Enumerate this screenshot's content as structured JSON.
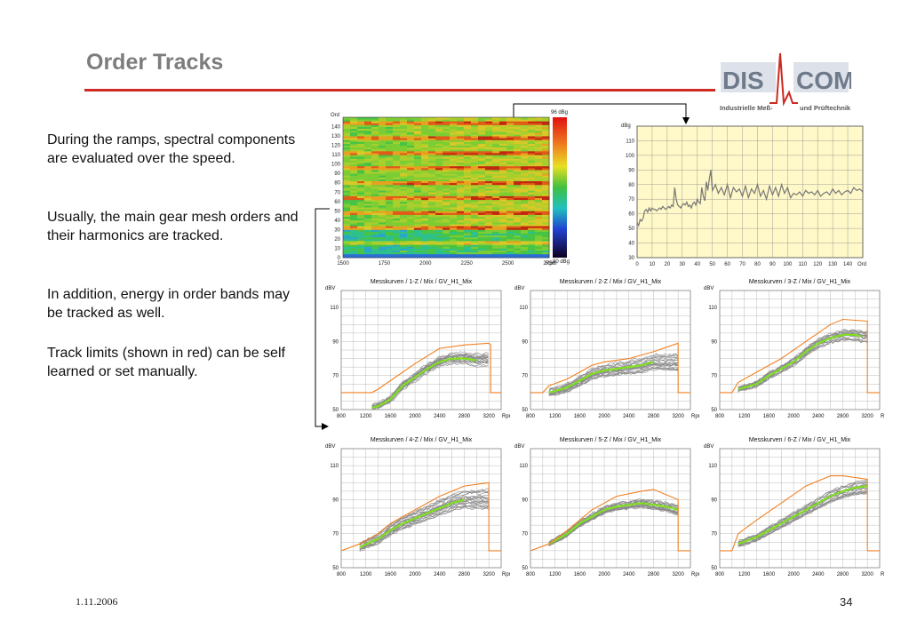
{
  "slide": {
    "title": "Order Tracks",
    "date": "1.11.2006",
    "page_number": "34"
  },
  "logo": {
    "part1": "DIS",
    "part2": "COM",
    "subtitle_left": "Industrielle Meß-",
    "subtitle_right": "und Prüftechnik",
    "colors": {
      "text": "#6f7a8a",
      "pulse": "#cc2a22"
    }
  },
  "paragraphs": [
    "During the ramps, spectral components are evaluated over the speed.",
    "Usually, the main gear mesh orders and their harmonics are tracked.",
    "In addition, energy in order bands may be tracked as well.",
    "Track limits (shown in red) can be self learned or set manually."
  ],
  "colors": {
    "accent_red": "#cc2a22",
    "track_limit": "#f08020",
    "track_curve": "#80e020",
    "measurement": "#808080",
    "spectrum_bg": "#fff8c8"
  },
  "chart_data": [
    {
      "type": "heatmap",
      "id": "colormap",
      "title": "",
      "ylabel": "Ord",
      "xlabel": "Rpm",
      "x_ticks": [
        "1500",
        "1750",
        "2000",
        "2250",
        "2500",
        "2750"
      ],
      "y_ticks": [
        "0",
        "10",
        "20",
        "30",
        "40",
        "50",
        "60",
        "70",
        "80",
        "90",
        "100",
        "110",
        "120",
        "130",
        "140"
      ],
      "xlim": [
        1500,
        2750
      ],
      "ylim": [
        0,
        150
      ],
      "scale_top": "96 dBg",
      "scale_bottom": "30 dBg",
      "strong_orders": [
        16,
        32,
        48,
        64,
        80,
        96,
        112,
        128,
        144
      ]
    },
    {
      "type": "line",
      "id": "order-spectrum",
      "title": "",
      "ylabel": "dBg",
      "xlabel": "Ord",
      "x_ticks": [
        "0",
        "10",
        "20",
        "30",
        "40",
        "50",
        "60",
        "70",
        "80",
        "90",
        "100",
        "110",
        "120",
        "130",
        "140"
      ],
      "y_ticks": [
        "30",
        "40",
        "50",
        "60",
        "70",
        "80",
        "90",
        "100",
        "110"
      ],
      "xlim": [
        0,
        150
      ],
      "ylim": [
        30,
        120
      ],
      "grid": true,
      "series": [
        {
          "x": [
            0,
            1,
            2,
            3,
            4,
            5,
            6,
            7,
            8,
            9,
            10,
            11,
            12,
            13,
            14,
            15,
            16,
            17,
            18,
            19,
            20,
            21,
            22,
            23,
            24,
            25,
            26,
            27,
            28,
            29,
            30,
            31,
            32,
            33,
            34,
            35,
            36,
            37,
            38,
            39,
            40,
            41,
            42,
            43,
            44,
            45,
            46,
            47,
            48,
            49,
            50,
            52,
            54,
            56,
            58,
            60,
            62,
            64,
            66,
            68,
            70,
            72,
            74,
            76,
            78,
            80,
            82,
            84,
            86,
            88,
            90,
            92,
            94,
            96,
            98,
            100,
            102,
            104,
            106,
            108,
            110,
            112,
            114,
            116,
            118,
            120,
            122,
            124,
            126,
            128,
            130,
            132,
            134,
            136,
            138,
            140,
            142,
            144,
            146,
            148,
            150
          ],
          "y": [
            54,
            52,
            56,
            55,
            57,
            62,
            63,
            61,
            64,
            62,
            64,
            63,
            63,
            62,
            63,
            64,
            63,
            65,
            64,
            63,
            64,
            65,
            64,
            66,
            65,
            78,
            70,
            66,
            65,
            64,
            66,
            67,
            66,
            68,
            65,
            66,
            64,
            67,
            68,
            66,
            70,
            68,
            67,
            78,
            72,
            69,
            82,
            76,
            84,
            90,
            76,
            80,
            74,
            78,
            73,
            80,
            71,
            78,
            75,
            77,
            72,
            79,
            71,
            77,
            74,
            80,
            72,
            76,
            70,
            79,
            73,
            78,
            72,
            80,
            74,
            78,
            71,
            74,
            73,
            75,
            72,
            76,
            74,
            75,
            73,
            76,
            72,
            74,
            75,
            73,
            77,
            74,
            76,
            73,
            75,
            76,
            74,
            78,
            76,
            77,
            75
          ]
        }
      ]
    },
    {
      "type": "line",
      "id": "mk1",
      "title": "Messkurven / 1-Z / Mix / GV_H1_Mix",
      "ylabel": "dBV",
      "xlabel": "Rpm",
      "x_ticks": [
        "800",
        "1200",
        "1600",
        "2000",
        "2400",
        "2800",
        "3200"
      ],
      "y_ticks": [
        "50",
        "70",
        "90",
        "110"
      ],
      "xlim": [
        800,
        3400
      ],
      "ylim": [
        50,
        120
      ],
      "grid": true,
      "limit": {
        "x": [
          800,
          1300,
          1400,
          1600,
          2000,
          2400,
          2800,
          3200,
          3230,
          3230,
          3400
        ],
        "y": [
          60,
          60,
          62,
          67,
          77,
          86,
          88,
          89,
          88,
          60,
          60
        ]
      },
      "curve": {
        "x": [
          1300,
          1400,
          1500,
          1600,
          1700,
          1800,
          2000,
          2200,
          2400,
          2600,
          2800,
          3000
        ],
        "y": [
          51,
          52,
          54,
          56,
          60,
          64,
          69,
          74,
          78,
          80,
          80,
          79
        ]
      },
      "meas_start": 1300,
      "meas_end": 3200,
      "spread": 4
    },
    {
      "type": "line",
      "id": "mk2",
      "title": "Messkurven / 2-Z / Mix / GV_H1_Mix",
      "ylabel": "dBV",
      "xlabel": "Rpm",
      "x_ticks": [
        "800",
        "1200",
        "1600",
        "2000",
        "2400",
        "2800",
        "3200"
      ],
      "y_ticks": [
        "50",
        "70",
        "90",
        "110"
      ],
      "xlim": [
        800,
        3400
      ],
      "ylim": [
        50,
        120
      ],
      "grid": true,
      "limit": {
        "x": [
          800,
          1000,
          1100,
          1400,
          1600,
          1800,
          2000,
          2400,
          2800,
          3200,
          3200,
          3400
        ],
        "y": [
          60,
          60,
          64,
          68,
          72,
          76,
          78,
          80,
          84,
          89,
          60,
          60
        ]
      },
      "curve": {
        "x": [
          1100,
          1400,
          1600,
          1800,
          2000,
          2200,
          2400,
          2600,
          2800
        ],
        "y": [
          60,
          63,
          67,
          71,
          73,
          74,
          75,
          76,
          78
        ]
      },
      "meas_start": 1100,
      "meas_end": 3200,
      "spread": 5
    },
    {
      "type": "line",
      "id": "mk3",
      "title": "Messkurven / 3-Z / Mix / GV_H1_Mix",
      "ylabel": "dBV",
      "xlabel": "R",
      "x_ticks": [
        "800",
        "1200",
        "1600",
        "2000",
        "2400",
        "2800",
        "3200"
      ],
      "y_ticks": [
        "50",
        "70",
        "90",
        "110"
      ],
      "xlim": [
        800,
        3400
      ],
      "ylim": [
        50,
        120
      ],
      "grid": true,
      "limit": {
        "x": [
          800,
          1000,
          1100,
          1400,
          1800,
          2200,
          2600,
          2800,
          3200,
          3200,
          3400
        ],
        "y": [
          60,
          60,
          66,
          72,
          80,
          90,
          100,
          103,
          102,
          60,
          60
        ]
      },
      "curve": {
        "x": [
          1100,
          1400,
          1600,
          1800,
          2000,
          2200,
          2400,
          2600,
          2800,
          3000,
          3100
        ],
        "y": [
          62,
          65,
          70,
          74,
          78,
          84,
          89,
          92,
          94,
          94,
          93
        ]
      },
      "meas_start": 1100,
      "meas_end": 3200,
      "spread": 4
    },
    {
      "type": "line",
      "id": "mk4",
      "title": "Messkurven / 4-Z / Mix / GV_H1_Mix",
      "ylabel": "dBV",
      "xlabel": "Rpm",
      "x_ticks": [
        "800",
        "1200",
        "1600",
        "2000",
        "2400",
        "2800",
        "3200"
      ],
      "y_ticks": [
        "50",
        "70",
        "90",
        "110"
      ],
      "xlim": [
        800,
        3400
      ],
      "ylim": [
        50,
        120
      ],
      "grid": true,
      "limit": {
        "x": [
          800,
          1100,
          1400,
          1600,
          2000,
          2400,
          2800,
          3200,
          3200,
          3400
        ],
        "y": [
          60,
          64,
          70,
          76,
          84,
          92,
          98,
          100,
          60,
          60
        ]
      },
      "curve": {
        "x": [
          1100,
          1400,
          1600,
          1800,
          2000,
          2200,
          2400,
          2600,
          2800
        ],
        "y": [
          62,
          67,
          72,
          76,
          79,
          82,
          85,
          88,
          90
        ]
      },
      "meas_start": 1100,
      "meas_end": 3200,
      "spread": 6
    },
    {
      "type": "line",
      "id": "mk5",
      "title": "Messkurven / 5-Z / Mix / GV_H1_Mix",
      "ylabel": "dBV",
      "xlabel": "Rpm",
      "x_ticks": [
        "800",
        "1200",
        "1600",
        "2000",
        "2400",
        "2800",
        "3200"
      ],
      "y_ticks": [
        "50",
        "70",
        "90",
        "110"
      ],
      "xlim": [
        800,
        3400
      ],
      "ylim": [
        50,
        120
      ],
      "grid": true,
      "limit": {
        "x": [
          800,
          1100,
          1400,
          1800,
          2200,
          2600,
          2800,
          3200,
          3200,
          3400
        ],
        "y": [
          60,
          64,
          72,
          84,
          92,
          95,
          96,
          90,
          60,
          60
        ]
      },
      "curve": {
        "x": [
          1100,
          1400,
          1600,
          1800,
          2000,
          2200,
          2400,
          2600,
          2800,
          3000,
          3200
        ],
        "y": [
          64,
          70,
          76,
          80,
          84,
          86,
          87,
          88,
          87,
          86,
          84
        ]
      },
      "meas_start": 1100,
      "meas_end": 3200,
      "spread": 3
    },
    {
      "type": "line",
      "id": "mk6",
      "title": "Messkurven / 6-Z / Mix / GV_H1_Mix",
      "ylabel": "dBV",
      "xlabel": "R",
      "x_ticks": [
        "800",
        "1200",
        "1600",
        "2000",
        "2400",
        "2800",
        "3200"
      ],
      "y_ticks": [
        "50",
        "70",
        "90",
        "110"
      ],
      "xlim": [
        800,
        3400
      ],
      "ylim": [
        50,
        120
      ],
      "grid": true,
      "limit": {
        "x": [
          800,
          1000,
          1100,
          1400,
          1800,
          2200,
          2600,
          2800,
          3200,
          3200,
          3400
        ],
        "y": [
          60,
          60,
          70,
          78,
          88,
          98,
          104,
          104,
          102,
          60,
          60
        ]
      },
      "curve": {
        "x": [
          1100,
          1400,
          1600,
          1800,
          2000,
          2200,
          2400,
          2600,
          2800,
          3000,
          3200
        ],
        "y": [
          64,
          68,
          72,
          76,
          80,
          84,
          88,
          92,
          95,
          97,
          98
        ]
      },
      "meas_start": 1100,
      "meas_end": 3200,
      "spread": 4
    }
  ]
}
